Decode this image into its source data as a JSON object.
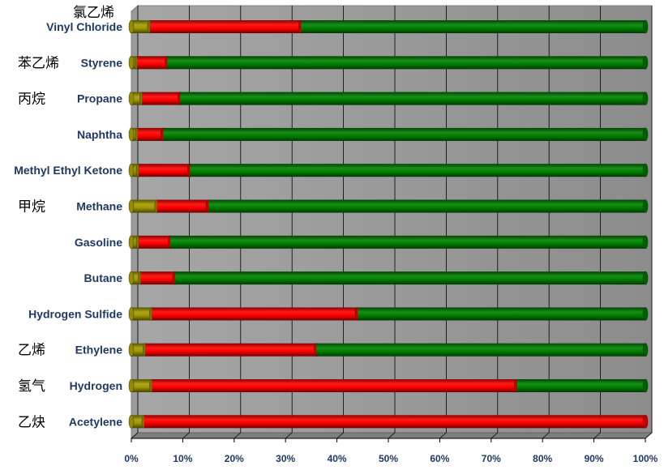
{
  "chart_data": {
    "type": "bar",
    "orientation": "horizontal",
    "stacked": "percent",
    "style": "3d-cylinder",
    "categories": [
      {
        "en": "Vinyl Chloride",
        "zh": "氯乙烯"
      },
      {
        "en": "Styrene",
        "zh": "苯乙烯"
      },
      {
        "en": "Propane",
        "zh": "丙烷"
      },
      {
        "en": "Naphtha",
        "zh": ""
      },
      {
        "en": "Methyl Ethyl Ketone",
        "zh": ""
      },
      {
        "en": "Methane",
        "zh": "甲烷"
      },
      {
        "en": "Gasoline",
        "zh": ""
      },
      {
        "en": "Butane",
        "zh": ""
      },
      {
        "en": "Hydrogen Sulfide",
        "zh": ""
      },
      {
        "en": "Ethylene",
        "zh": "乙烯"
      },
      {
        "en": "Hydrogen",
        "zh": "氢气"
      },
      {
        "en": "Acetylene",
        "zh": "乙炔"
      }
    ],
    "series": [
      {
        "color": "#a39a00",
        "values": [
          3.6,
          1.1,
          2.1,
          1.2,
          1.4,
          5.0,
          1.4,
          1.8,
          4.0,
          2.7,
          4.0,
          2.5
        ]
      },
      {
        "color": "#ff0000",
        "values": [
          29.4,
          5.9,
          7.4,
          5.0,
          10.0,
          10.0,
          6.2,
          6.7,
          40.0,
          33.3,
          71.0,
          97.5
        ]
      },
      {
        "color": "#008000",
        "values": [
          67.0,
          93.0,
          90.5,
          93.8,
          88.6,
          85.0,
          92.4,
          91.5,
          56.0,
          64.0,
          25.0,
          0.0
        ]
      }
    ],
    "x_ticks": [
      "0%",
      "10%",
      "20%",
      "30%",
      "40%",
      "50%",
      "60%",
      "70%",
      "80%",
      "90%",
      "100%"
    ],
    "xlim": [
      0,
      100
    ],
    "grid": true,
    "legend": "none",
    "colors": {
      "wall": "#969696",
      "grid": "#000000"
    }
  }
}
